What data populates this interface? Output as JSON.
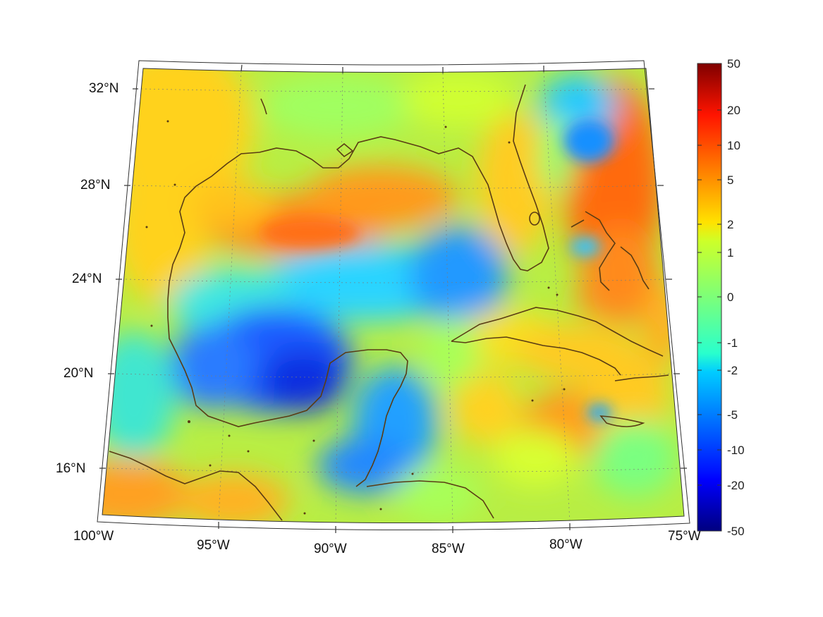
{
  "map": {
    "longitude_labels": [
      "100°W",
      "95°W",
      "90°W",
      "85°W",
      "80°W",
      "75°W"
    ],
    "latitude_labels": [
      "32°N",
      "28°N",
      "24°N",
      "20°N",
      "16°N"
    ],
    "colors": {
      "coastline": "#5a3c14",
      "graticule": "#7a7a7a",
      "frame": "#333333"
    }
  },
  "colorbar": {
    "tick_labels": [
      "50",
      "20",
      "10",
      "5",
      "2",
      "1",
      "0",
      "-1",
      "-2",
      "-5",
      "-10",
      "-20",
      "-50"
    ],
    "colormap": "jet",
    "scale": "symmetric-log"
  }
}
